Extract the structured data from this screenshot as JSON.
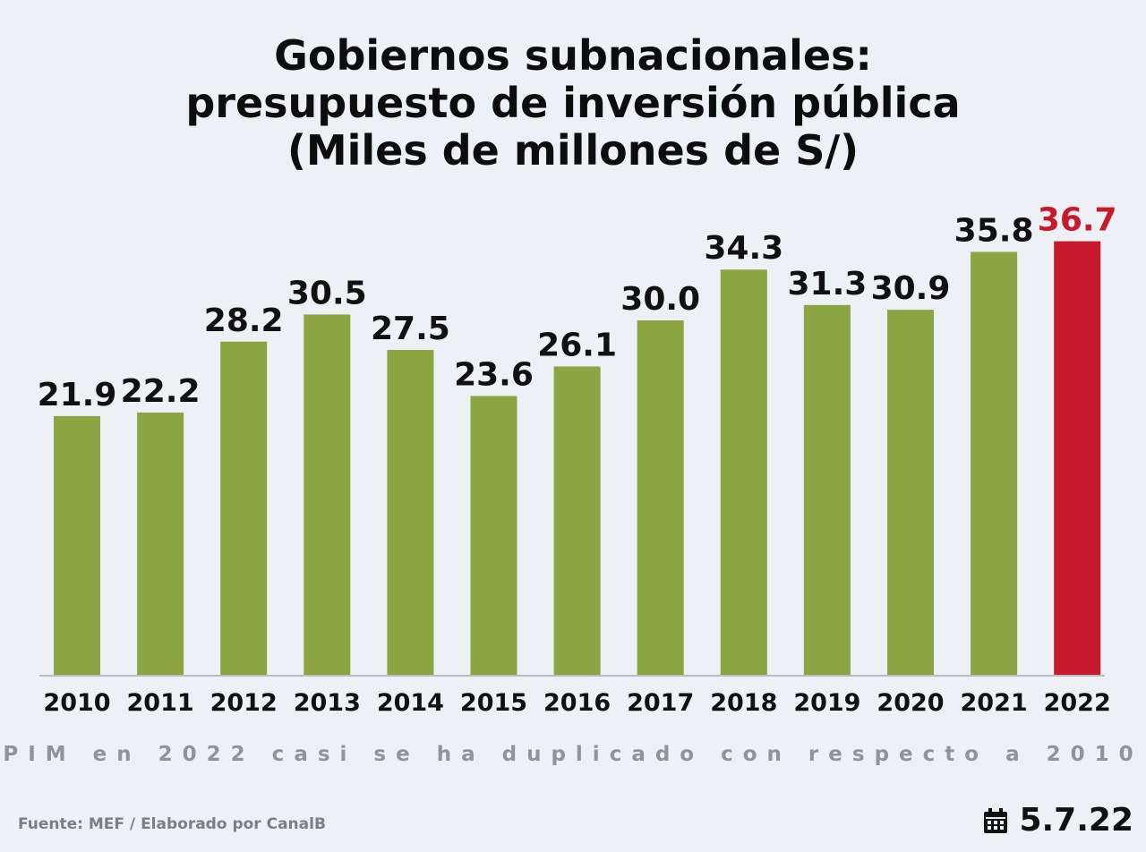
{
  "title_lines": [
    "Gobiernos subnacionales:",
    "presupuesto de inversión pública",
    "(Miles de millones de S/)"
  ],
  "subtitle": "PIM en 2022 casi se ha duplicado con respecto a 2010",
  "source": "Fuente: MEF / Elaborado por CanalB",
  "date": "5.7.22",
  "date_icon": "calendar-icon",
  "colors": {
    "bar": "#8aa542",
    "highlight": "#c8182b",
    "label": "#111111",
    "axis": "#b9bcc1"
  },
  "chart_data": {
    "type": "bar",
    "title": "Gobiernos subnacionales: presupuesto de inversión pública (Miles de millones de S/)",
    "categories": [
      "2010",
      "2011",
      "2012",
      "2013",
      "2014",
      "2015",
      "2016",
      "2017",
      "2018",
      "2019",
      "2020",
      "2021",
      "2022"
    ],
    "values": [
      21.9,
      22.2,
      28.2,
      30.5,
      27.5,
      23.6,
      26.1,
      30.0,
      34.3,
      31.3,
      30.9,
      35.8,
      36.7
    ],
    "value_labels": [
      "21.9",
      "22.2",
      "28.2",
      "30.5",
      "27.5",
      "23.6",
      "26.1",
      "30.0",
      "34.3",
      "31.3",
      "30.9",
      "35.8",
      "36.7"
    ],
    "highlight_index": 12,
    "xlabel": "",
    "ylabel": "",
    "grid": false,
    "legend": "none"
  }
}
